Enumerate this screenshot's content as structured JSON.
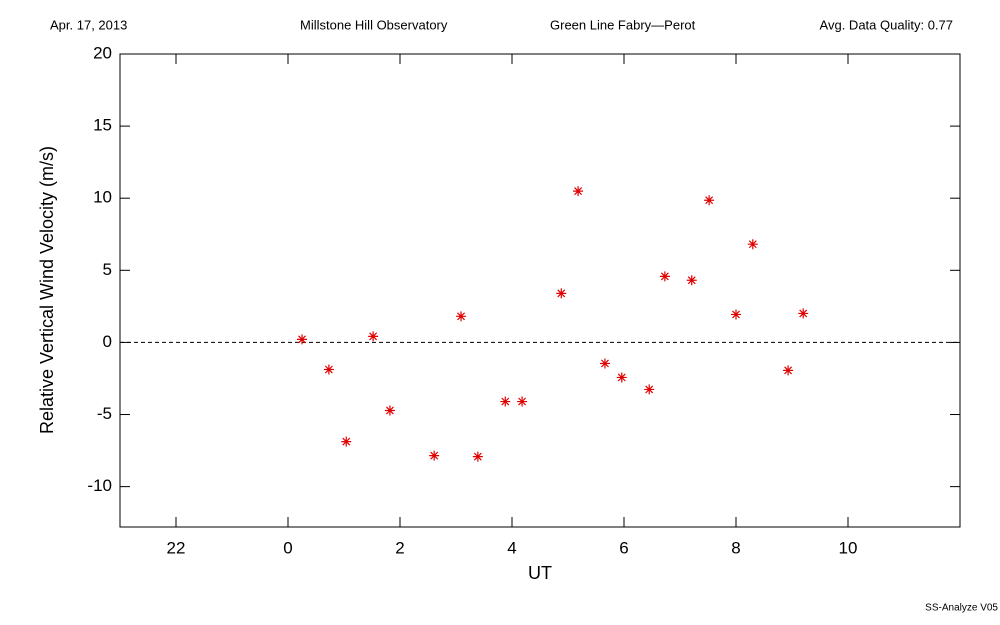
{
  "chart_data": {
    "type": "scatter",
    "header": [
      "Apr. 17, 2013",
      "Millstone Hill Observatory",
      "Green Line Fabry—Perot",
      "Avg. Data Quality: 0.77"
    ],
    "footer": "SS-Analyze V05",
    "x_label": "UT",
    "y_label": "Relative Vertical Wind Velocity (m/s)",
    "xlim": [
      -3,
      12
    ],
    "ylim": [
      -12.8,
      20
    ],
    "xticks": [
      {
        "value": -2,
        "label": "22"
      },
      0,
      2,
      4,
      6,
      8,
      10
    ],
    "yticks": [
      -10,
      -5,
      0,
      5,
      10,
      15,
      20
    ],
    "reference_line": 0,
    "series": [
      {
        "color": "#e00000",
        "x": [
          0.25,
          0.73,
          1.04,
          1.52,
          1.82,
          2.61,
          3.09,
          3.39,
          3.88,
          4.18,
          4.88,
          5.18,
          5.66,
          5.96,
          6.45,
          6.73,
          7.21,
          7.52,
          8.0,
          8.3,
          8.93,
          9.2
        ],
        "values": [
          0.21,
          -1.88,
          -6.88,
          0.42,
          -4.72,
          -7.85,
          1.81,
          -7.92,
          -4.1,
          -4.1,
          3.4,
          10.49,
          -1.46,
          -2.43,
          -3.26,
          4.58,
          4.31,
          9.86,
          1.94,
          6.81,
          -1.94,
          2.01
        ]
      }
    ]
  }
}
